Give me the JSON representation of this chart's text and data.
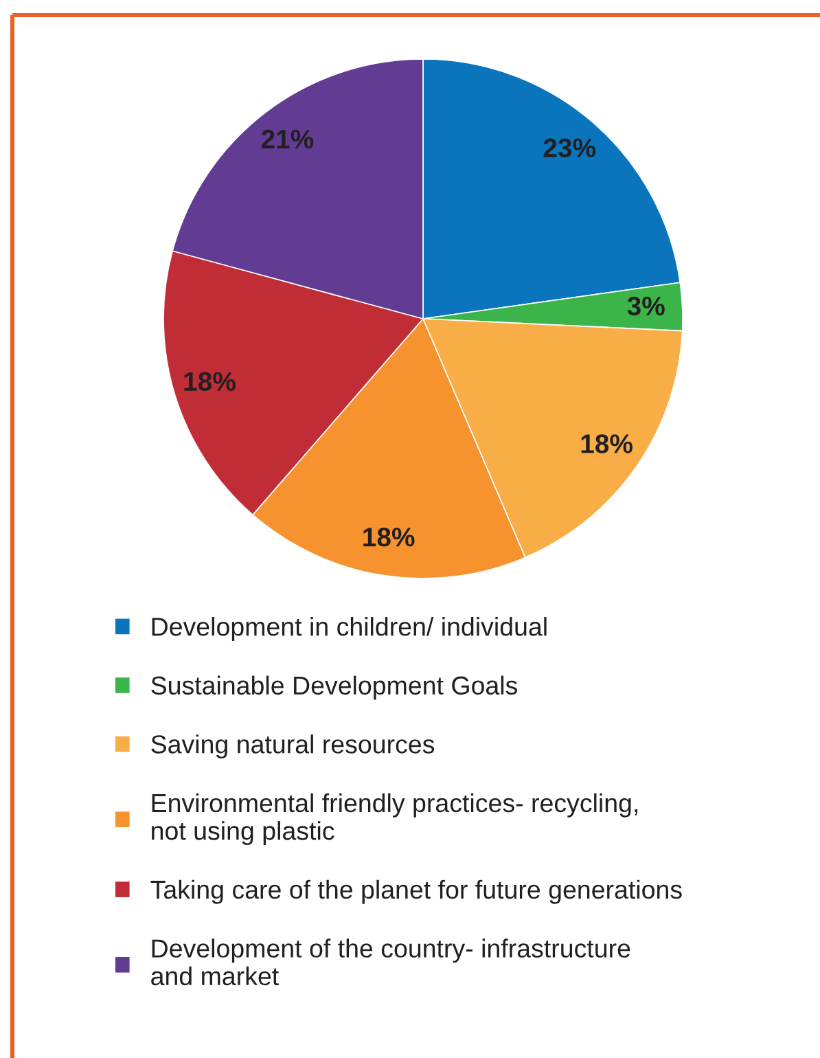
{
  "chart_data": {
    "type": "pie",
    "categories": [
      "Development in children/ individual",
      "Sustainable Development Goals",
      "Saving natural resources",
      "Environmental friendly practices- recycling,\nnot using plastic",
      "Taking care of the planet for future generations",
      "Development of the country- infrastructure\nand market"
    ],
    "values": [
      23,
      3,
      18,
      18,
      18,
      21
    ],
    "colors": [
      "#0a74bd",
      "#3bb44a",
      "#f9ad47",
      "#f6932f",
      "#c12d36",
      "#623b93"
    ],
    "value_labels": [
      "23%",
      "3%",
      "18%",
      "18%",
      "18%",
      "21%"
    ],
    "legend": "bottom"
  }
}
